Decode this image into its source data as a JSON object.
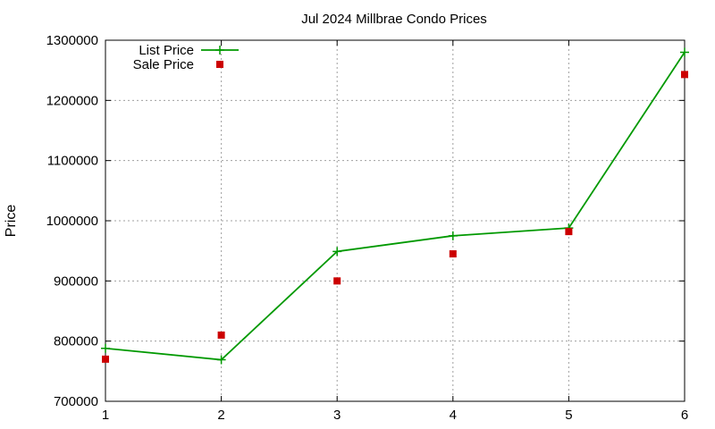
{
  "chart_data": {
    "type": "line",
    "title": "Jul 2024 Millbrae Condo Prices",
    "xlabel": "",
    "ylabel": "Price",
    "x": [
      1,
      2,
      3,
      4,
      5,
      6
    ],
    "xlim": [
      1,
      6
    ],
    "ylim": [
      700000,
      1300000
    ],
    "x_ticks": [
      "1",
      "2",
      "3",
      "4",
      "5",
      "6"
    ],
    "y_ticks": [
      "700000",
      "800000",
      "900000",
      "1000000",
      "1100000",
      "1200000",
      "1300000"
    ],
    "grid": true,
    "legend_position": "top-left",
    "series": [
      {
        "name": "List Price",
        "style": "line-with-plus-markers",
        "color": "#009900",
        "values": [
          788000,
          769000,
          949000,
          975000,
          988000,
          1280000
        ]
      },
      {
        "name": "Sale Price",
        "style": "square-markers",
        "color": "#cc0000",
        "values": [
          770000,
          810000,
          900000,
          945000,
          982000,
          1243000
        ]
      }
    ]
  }
}
